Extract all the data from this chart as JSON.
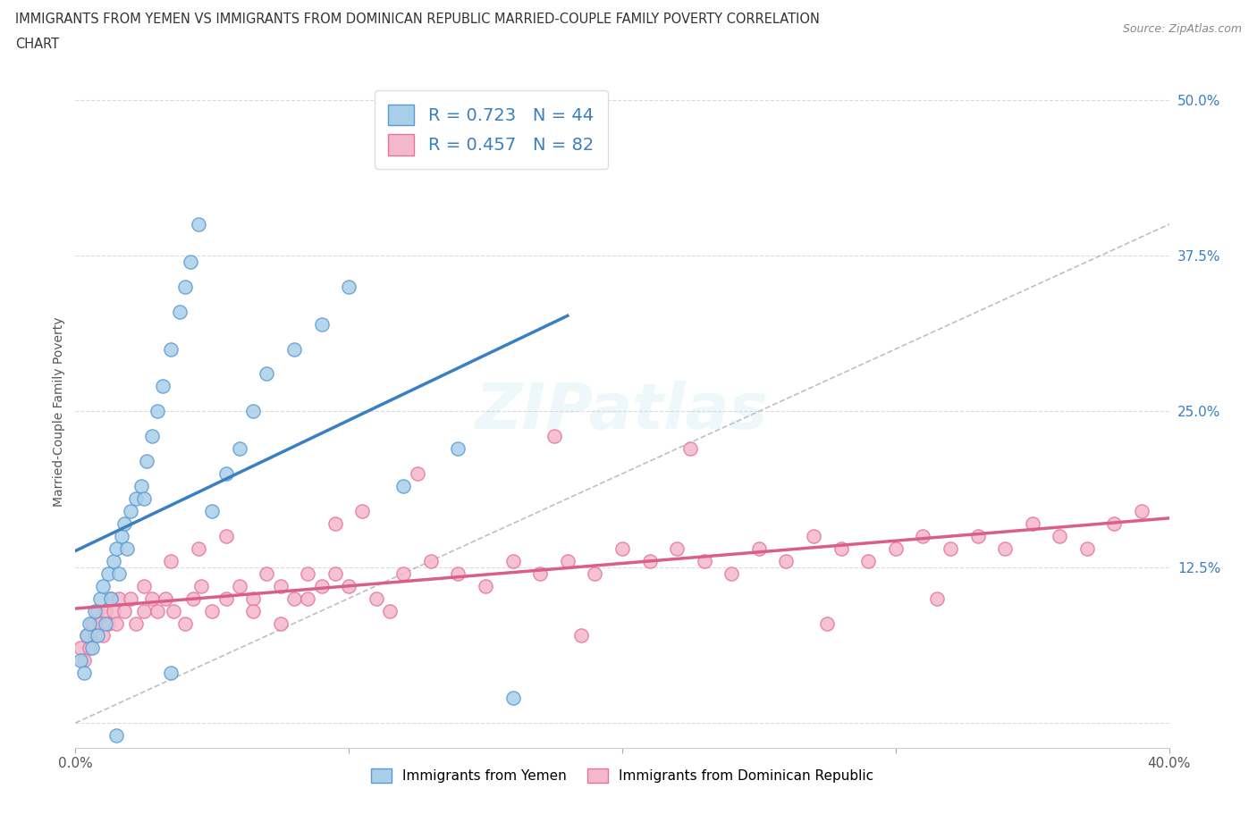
{
  "title_line1": "IMMIGRANTS FROM YEMEN VS IMMIGRANTS FROM DOMINICAN REPUBLIC MARRIED-COUPLE FAMILY POVERTY CORRELATION",
  "title_line2": "CHART",
  "source": "Source: ZipAtlas.com",
  "ylabel": "Married-Couple Family Poverty",
  "xlim": [
    0.0,
    0.4
  ],
  "ylim": [
    -0.02,
    0.52
  ],
  "xticks": [
    0.0,
    0.1,
    0.2,
    0.3,
    0.4
  ],
  "xtick_labels": [
    "0.0%",
    "",
    "",
    "",
    "40.0%"
  ],
  "ytick_positions": [
    0.0,
    0.125,
    0.25,
    0.375,
    0.5
  ],
  "ytick_labels": [
    "",
    "12.5%",
    "25.0%",
    "37.5%",
    "50.0%"
  ],
  "blue_scatter_color": "#a8cfe8",
  "blue_edge_color": "#5b9bd5",
  "pink_scatter_color": "#f4b8cb",
  "pink_edge_color": "#e8729a",
  "trend_blue": "#3a7fc1",
  "trend_pink": "#d95f8a",
  "diag_color": "#b0b0b0",
  "R_yemen": 0.723,
  "N_yemen": 44,
  "R_dr": 0.457,
  "N_dr": 82,
  "legend_label_blue": "Immigrants from Yemen",
  "legend_label_pink": "Immigrants from Dominican Republic",
  "grid_color": "#cccccc",
  "background_color": "#ffffff",
  "yemen_scatter_x": [
    0.002,
    0.003,
    0.004,
    0.005,
    0.006,
    0.007,
    0.008,
    0.009,
    0.01,
    0.011,
    0.012,
    0.013,
    0.014,
    0.015,
    0.016,
    0.017,
    0.018,
    0.019,
    0.02,
    0.022,
    0.024,
    0.026,
    0.028,
    0.03,
    0.032,
    0.035,
    0.038,
    0.04,
    0.042,
    0.045,
    0.05,
    0.055,
    0.06,
    0.065,
    0.07,
    0.08,
    0.09,
    0.1,
    0.12,
    0.14,
    0.015,
    0.025,
    0.035,
    0.16
  ],
  "yemen_scatter_y": [
    0.05,
    0.04,
    0.07,
    0.08,
    0.06,
    0.09,
    0.07,
    0.1,
    0.11,
    0.08,
    0.12,
    0.1,
    0.13,
    0.14,
    0.12,
    0.15,
    0.16,
    0.14,
    0.17,
    0.18,
    0.19,
    0.21,
    0.23,
    0.25,
    0.27,
    0.3,
    0.33,
    0.35,
    0.37,
    0.4,
    0.17,
    0.2,
    0.22,
    0.25,
    0.28,
    0.3,
    0.32,
    0.35,
    0.19,
    0.22,
    -0.01,
    0.18,
    0.04,
    0.02
  ],
  "dr_scatter_x": [
    0.002,
    0.003,
    0.004,
    0.005,
    0.006,
    0.007,
    0.008,
    0.009,
    0.01,
    0.011,
    0.012,
    0.013,
    0.014,
    0.015,
    0.016,
    0.018,
    0.02,
    0.022,
    0.025,
    0.028,
    0.03,
    0.033,
    0.036,
    0.04,
    0.043,
    0.046,
    0.05,
    0.055,
    0.06,
    0.065,
    0.07,
    0.075,
    0.08,
    0.085,
    0.09,
    0.095,
    0.1,
    0.11,
    0.12,
    0.13,
    0.14,
    0.15,
    0.16,
    0.17,
    0.18,
    0.19,
    0.2,
    0.21,
    0.22,
    0.23,
    0.24,
    0.25,
    0.26,
    0.27,
    0.28,
    0.29,
    0.3,
    0.31,
    0.32,
    0.33,
    0.34,
    0.35,
    0.36,
    0.37,
    0.38,
    0.39,
    0.025,
    0.035,
    0.045,
    0.055,
    0.065,
    0.075,
    0.085,
    0.095,
    0.105,
    0.115,
    0.125,
    0.175,
    0.185,
    0.225,
    0.275,
    0.315
  ],
  "dr_scatter_y": [
    0.06,
    0.05,
    0.07,
    0.06,
    0.08,
    0.07,
    0.09,
    0.08,
    0.07,
    0.09,
    0.08,
    0.1,
    0.09,
    0.08,
    0.1,
    0.09,
    0.1,
    0.08,
    0.09,
    0.1,
    0.09,
    0.1,
    0.09,
    0.08,
    0.1,
    0.11,
    0.09,
    0.1,
    0.11,
    0.1,
    0.12,
    0.11,
    0.1,
    0.12,
    0.11,
    0.12,
    0.11,
    0.1,
    0.12,
    0.13,
    0.12,
    0.11,
    0.13,
    0.12,
    0.13,
    0.12,
    0.14,
    0.13,
    0.14,
    0.13,
    0.12,
    0.14,
    0.13,
    0.15,
    0.14,
    0.13,
    0.14,
    0.15,
    0.14,
    0.15,
    0.14,
    0.16,
    0.15,
    0.14,
    0.16,
    0.17,
    0.11,
    0.13,
    0.14,
    0.15,
    0.09,
    0.08,
    0.1,
    0.16,
    0.17,
    0.09,
    0.2,
    0.23,
    0.07,
    0.22,
    0.08,
    0.1
  ]
}
